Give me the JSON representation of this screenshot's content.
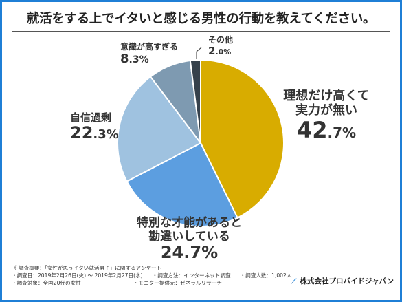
{
  "title": "就活をする上でイタいと感じる男性の行動を教えてください。",
  "chart_data": {
    "type": "pie",
    "title": "就活をする上でイタいと感じる男性の行動を教えてください。",
    "slices": [
      {
        "label": "理想だけ高くて実力が無い",
        "lines": [
          "理想だけ高くて",
          "実力が無い"
        ],
        "value": 42.7,
        "int": "42",
        "dec": ".7%",
        "color": "#d8ac00"
      },
      {
        "label": "特別な才能があると勘違いしている",
        "lines": [
          "特別な才能があると",
          "勘違いしている"
        ],
        "value": 24.7,
        "int": "24",
        "dec": ".7%",
        "color": "#5c9ee0"
      },
      {
        "label": "自信過剰",
        "lines": [
          "自信過剰"
        ],
        "value": 22.3,
        "int": "22",
        "dec": ".3%",
        "color": "#9fc2e0"
      },
      {
        "label": "意識が高すぎる",
        "lines": [
          "意識が高すぎる"
        ],
        "value": 8.3,
        "int": "8",
        "dec": ".3%",
        "color": "#7e9ab1"
      },
      {
        "label": "その他",
        "lines": [
          "その他"
        ],
        "value": 2.0,
        "int": "2",
        "dec": ".0%",
        "color": "#36414b"
      }
    ]
  },
  "survey": {
    "heading": "《 調査概要：「女性が思うイタい就活男子」に関するアンケート",
    "period": "・調査日：2019年2月26日(火) ～ 2019年2月27日(水)",
    "method": "・調査方法：インターネット調査",
    "count": "・調査人数：1,002人",
    "target": "・調査対象：全国20代の女性",
    "provider": "・モニター提供元：ゼネラルリサーチ"
  },
  "brand": {
    "name": "株式会社プロバイドジャパン",
    "icon": "feather-pen-icon"
  }
}
